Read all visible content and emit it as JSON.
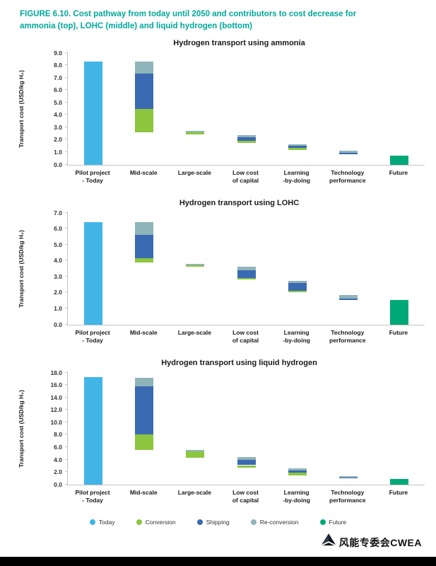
{
  "figure": {
    "caption": "FIGURE 6.10. Cost pathway from today until 2050 and contributors to cost decrease for ammonia (top), LOHC (middle) and liquid hydrogen (bottom)"
  },
  "colors": {
    "today": "#41b6e6",
    "conversion": "#8dc63f",
    "shipping": "#3a6ab1",
    "reconversion": "#8fb4ba",
    "future": "#00a878",
    "caption_accent": "#00a79b"
  },
  "chart_data": {
    "type": "bar",
    "subtype": "stacked-waterfall",
    "legend": {
      "position": "bottom",
      "items": [
        {
          "key": "today",
          "label": "Today"
        },
        {
          "key": "conversion",
          "label": "Conversion"
        },
        {
          "key": "shipping",
          "label": "Shipping"
        },
        {
          "key": "reconversion",
          "label": "Re-conversion"
        },
        {
          "key": "future",
          "label": "Future"
        }
      ]
    },
    "charts": [
      {
        "id": "ammonia",
        "title": "Hydrogen transport using ammonia",
        "ylabel": "Transport cost (USD/kg H₂)",
        "ymax": 9.0,
        "ystep": 1.0,
        "categories": [
          "Pilot project\n- Today",
          "Mid-scale",
          "Large-scale",
          "Low cost\nof capital",
          "Learning\n-by-doing",
          "Technology\nperformance",
          "Future"
        ],
        "bars": [
          [
            {
              "key": "today",
              "from": 0,
              "to": 8.3
            }
          ],
          [
            {
              "key": "conversion",
              "from": 2.6,
              "to": 4.5
            },
            {
              "key": "shipping",
              "from": 4.5,
              "to": 7.3
            },
            {
              "key": "reconversion",
              "from": 7.3,
              "to": 8.3
            }
          ],
          [
            {
              "key": "conversion",
              "from": 2.45,
              "to": 2.62
            },
            {
              "key": "reconversion",
              "from": 2.62,
              "to": 2.68
            }
          ],
          [
            {
              "key": "conversion",
              "from": 1.75,
              "to": 1.92
            },
            {
              "key": "shipping",
              "from": 1.92,
              "to": 2.2
            },
            {
              "key": "reconversion",
              "from": 2.2,
              "to": 2.35
            }
          ],
          [
            {
              "key": "conversion",
              "from": 1.15,
              "to": 1.32
            },
            {
              "key": "shipping",
              "from": 1.32,
              "to": 1.5
            },
            {
              "key": "reconversion",
              "from": 1.5,
              "to": 1.6
            }
          ],
          [
            {
              "key": "shipping",
              "from": 0.85,
              "to": 0.93
            },
            {
              "key": "reconversion",
              "from": 0.93,
              "to": 1.1
            }
          ],
          [
            {
              "key": "future",
              "from": 0,
              "to": 0.7
            }
          ]
        ]
      },
      {
        "id": "lohc",
        "title": "Hydrogen transport using LOHC",
        "ylabel": "Transport cost (USD/kg H₂)",
        "ymax": 7.0,
        "ystep": 1.0,
        "categories": [
          "Pilot project\n- Today",
          "Mid-scale",
          "Large-scale",
          "Low cost\nof capital",
          "Learning\n-by-doing",
          "Technology\nperformance",
          "Future"
        ],
        "bars": [
          [
            {
              "key": "today",
              "from": 0,
              "to": 6.4
            }
          ],
          [
            {
              "key": "conversion",
              "from": 3.9,
              "to": 4.15
            },
            {
              "key": "shipping",
              "from": 4.15,
              "to": 5.6
            },
            {
              "key": "reconversion",
              "from": 5.6,
              "to": 6.4
            }
          ],
          [
            {
              "key": "conversion",
              "from": 3.6,
              "to": 3.72
            },
            {
              "key": "reconversion",
              "from": 3.72,
              "to": 3.78
            }
          ],
          [
            {
              "key": "conversion",
              "from": 2.8,
              "to": 2.9
            },
            {
              "key": "shipping",
              "from": 2.9,
              "to": 3.38
            },
            {
              "key": "reconversion",
              "from": 3.38,
              "to": 3.6
            }
          ],
          [
            {
              "key": "conversion",
              "from": 2.0,
              "to": 2.12
            },
            {
              "key": "shipping",
              "from": 2.12,
              "to": 2.6
            },
            {
              "key": "reconversion",
              "from": 2.6,
              "to": 2.72
            }
          ],
          [
            {
              "key": "shipping",
              "from": 1.55,
              "to": 1.63
            },
            {
              "key": "reconversion",
              "from": 1.63,
              "to": 1.85
            }
          ],
          [
            {
              "key": "future",
              "from": 0,
              "to": 1.55
            }
          ]
        ]
      },
      {
        "id": "liquid-hydrogen",
        "title": "Hydrogen transport using liquid hydrogen",
        "ylabel": "Transport cost (USD/kg H₂)",
        "ymax": 18.0,
        "ystep": 2.0,
        "categories": [
          "Pilot project\n- Today",
          "Mid-scale",
          "Large-scale",
          "Low cost\nof capital",
          "Learning\n-by-doing",
          "Technology\nperformance",
          "Future"
        ],
        "bars": [
          [
            {
              "key": "today",
              "from": 0,
              "to": 17.3
            }
          ],
          [
            {
              "key": "conversion",
              "from": 5.6,
              "to": 8.0
            },
            {
              "key": "shipping",
              "from": 8.0,
              "to": 15.8
            },
            {
              "key": "reconversion",
              "from": 15.8,
              "to": 17.2
            }
          ],
          [
            {
              "key": "conversion",
              "from": 4.3,
              "to": 5.3
            },
            {
              "key": "reconversion",
              "from": 5.3,
              "to": 5.6
            }
          ],
          [
            {
              "key": "conversion",
              "from": 2.7,
              "to": 3.1
            },
            {
              "key": "shipping",
              "from": 3.1,
              "to": 4.0
            },
            {
              "key": "reconversion",
              "from": 4.0,
              "to": 4.4
            }
          ],
          [
            {
              "key": "conversion",
              "from": 1.5,
              "to": 1.9
            },
            {
              "key": "shipping",
              "from": 1.9,
              "to": 2.3
            },
            {
              "key": "reconversion",
              "from": 2.3,
              "to": 2.6
            }
          ],
          [
            {
              "key": "shipping",
              "from": 1.05,
              "to": 1.15
            },
            {
              "key": "reconversion",
              "from": 1.15,
              "to": 1.35
            }
          ],
          [
            {
              "key": "future",
              "from": 0,
              "to": 0.9
            }
          ]
        ]
      }
    ]
  },
  "watermark": {
    "text": "风能专委会CWEA"
  }
}
